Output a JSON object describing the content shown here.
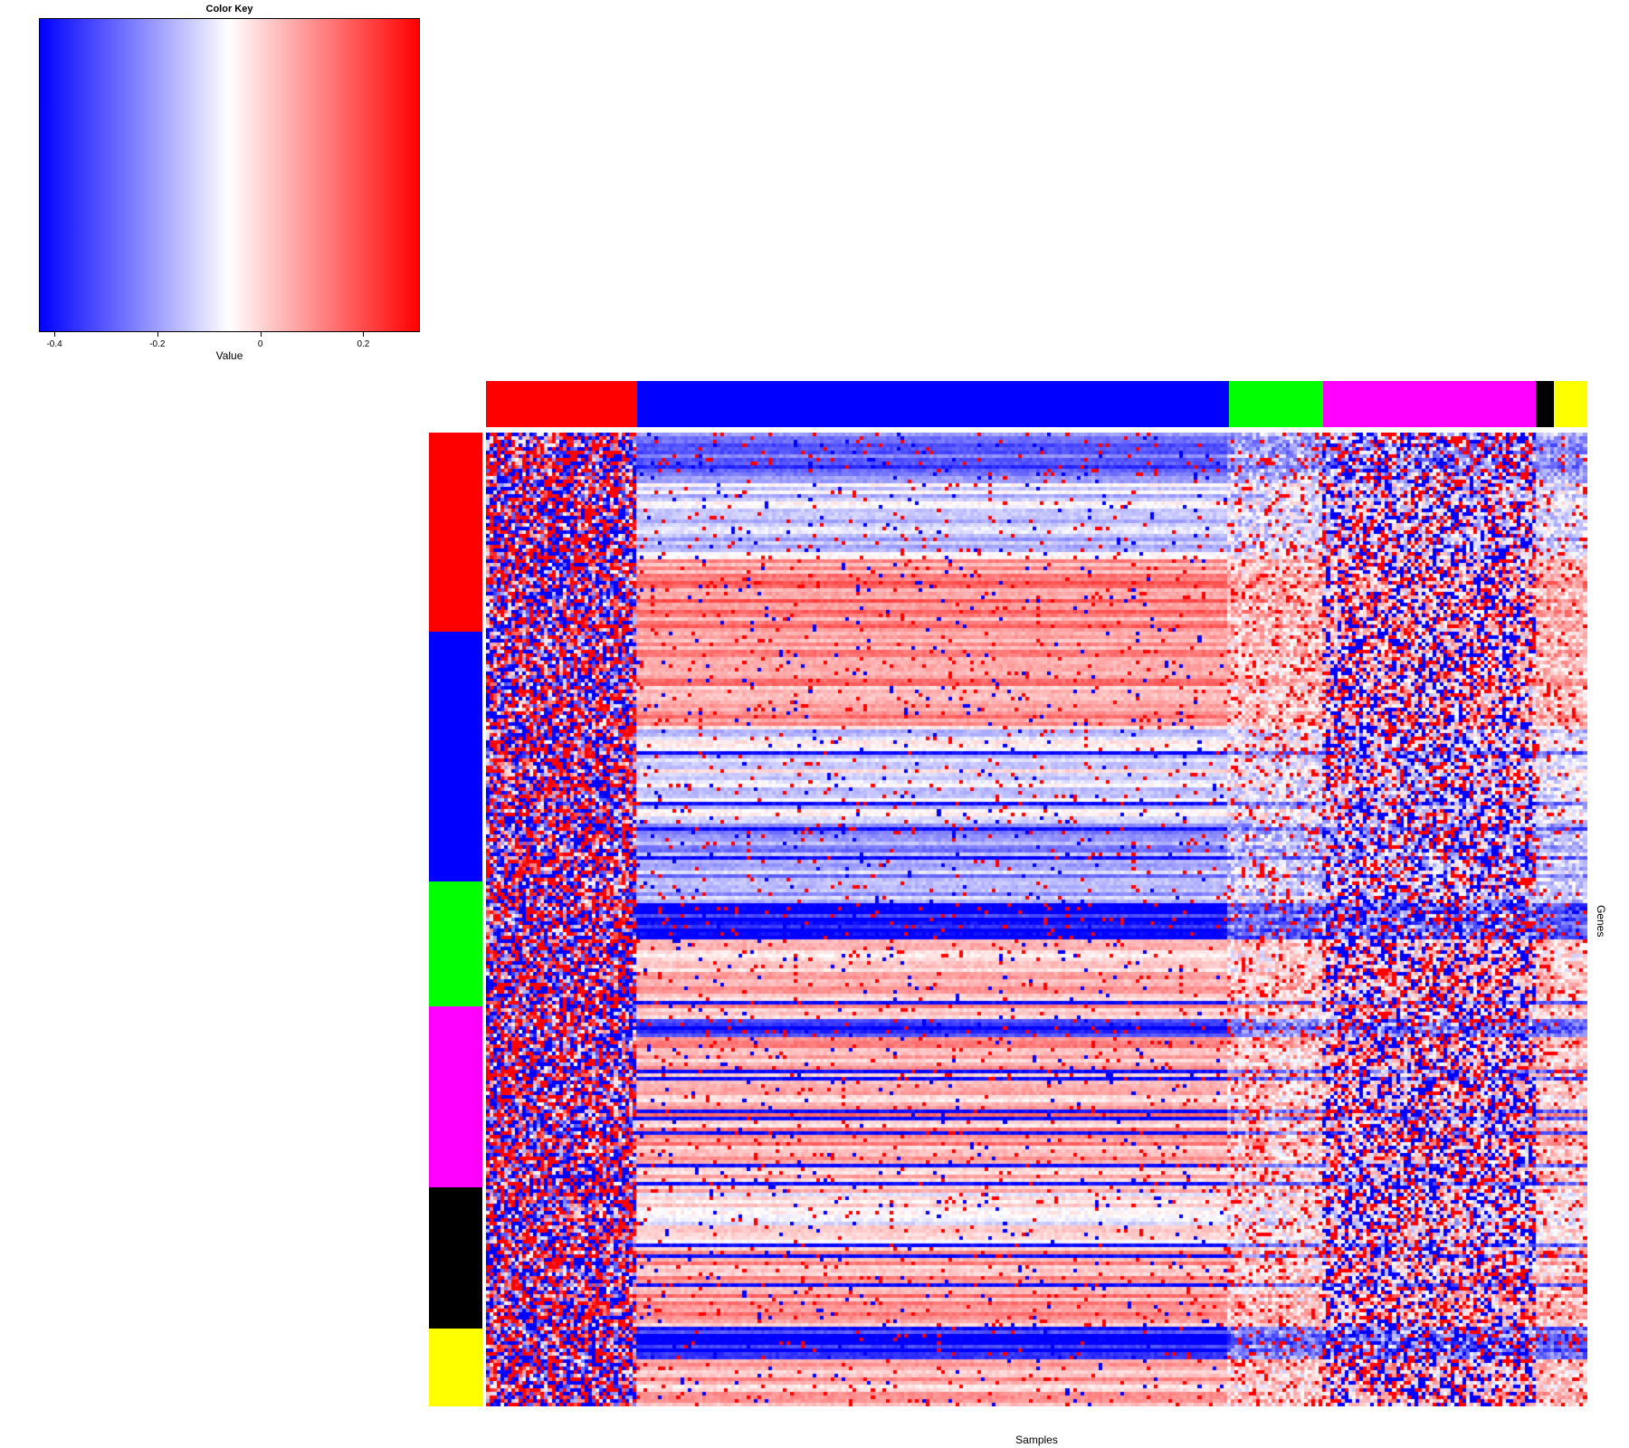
{
  "chart_data": {
    "type": "heatmap",
    "x_label": "Samples",
    "y_label": "Genes",
    "color_key": {
      "title": "Color Key",
      "xlabel": "Value",
      "range": [
        -0.43,
        0.31
      ],
      "midpoint": -0.06,
      "colors": [
        "#0000ff",
        "#ffffff",
        "#ff0000"
      ],
      "ticks": [
        {
          "value": -0.4,
          "label": "-0.4"
        },
        {
          "value": -0.2,
          "label": "-0.2"
        },
        {
          "value": 0,
          "label": "0"
        },
        {
          "value": 0.2,
          "label": "0.2"
        }
      ]
    },
    "column_groups": [
      {
        "color": "#ff0000",
        "fraction": 0.137
      },
      {
        "color": "#0000ff",
        "fraction": 0.538
      },
      {
        "color": "#00ff00",
        "fraction": 0.085
      },
      {
        "color": "#ff00ff",
        "fraction": 0.193
      },
      {
        "color": "#000000",
        "fraction": 0.017
      },
      {
        "color": "#ffff00",
        "fraction": 0.03
      }
    ],
    "row_groups": [
      {
        "color": "#ff0000",
        "fraction": 0.204
      },
      {
        "color": "#0000ff",
        "fraction": 0.257
      },
      {
        "color": "#00ff00",
        "fraction": 0.128
      },
      {
        "color": "#ff00ff",
        "fraction": 0.186
      },
      {
        "color": "#000000",
        "fraction": 0.145
      },
      {
        "color": "#ffff00",
        "fraction": 0.08
      }
    ]
  }
}
